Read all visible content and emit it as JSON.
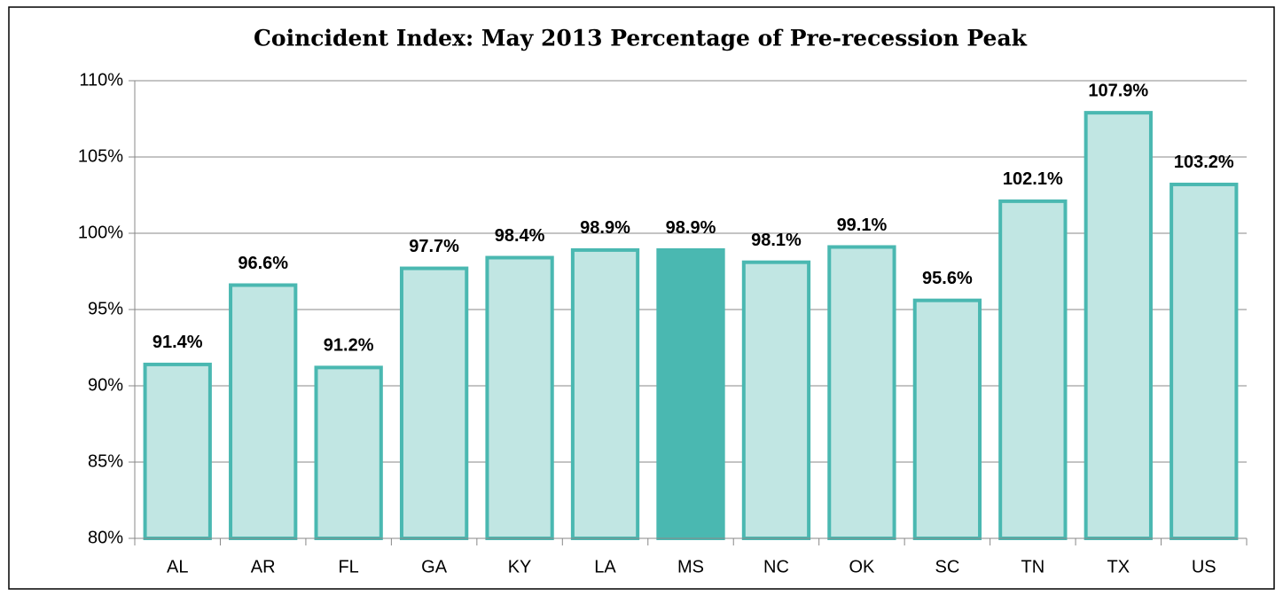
{
  "chart_data": {
    "type": "bar",
    "title": "Coincident Index:   May 2013 Percentage of Pre-recession Peak",
    "categories": [
      "AL",
      "AR",
      "FL",
      "GA",
      "KY",
      "LA",
      "MS",
      "NC",
      "OK",
      "SC",
      "TN",
      "TX",
      "US"
    ],
    "values": [
      91.4,
      96.6,
      91.2,
      97.7,
      98.4,
      98.9,
      98.9,
      98.1,
      99.1,
      95.6,
      102.1,
      107.9,
      103.2
    ],
    "value_labels": [
      "91.4%",
      "96.6%",
      "91.2%",
      "97.7%",
      "98.4%",
      "98.9%",
      "98.9%",
      "98.1%",
      "99.1%",
      "95.6%",
      "102.1%",
      "107.9%",
      "103.2%"
    ],
    "colors": [
      "#c1e6e3",
      "#c1e6e3",
      "#c1e6e3",
      "#c1e6e3",
      "#c1e6e3",
      "#c1e6e3",
      "#4ab8b1",
      "#c1e6e3",
      "#c1e6e3",
      "#c1e6e3",
      "#c1e6e3",
      "#c1e6e3",
      "#c1e6e3"
    ],
    "edge_color": "#4ab8b1",
    "ylim": [
      80,
      110
    ],
    "yticks": [
      {
        "value": 80,
        "label": "80%"
      },
      {
        "value": 85,
        "label": "85%"
      },
      {
        "value": 90,
        "label": "90%"
      },
      {
        "value": 95,
        "label": "95%"
      },
      {
        "value": 100,
        "label": "100%"
      },
      {
        "value": 105,
        "label": "105%"
      },
      {
        "value": 110,
        "label": "110%"
      }
    ],
    "grid": true
  }
}
